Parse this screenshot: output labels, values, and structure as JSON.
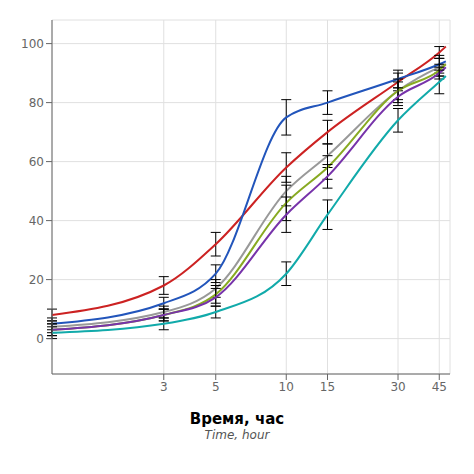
{
  "chart_data": {
    "type": "line",
    "xlabel": "Время, час",
    "annotations": [
      "Time, hour"
    ],
    "log": "x",
    "grid": true,
    "x": [
      1,
      3,
      5,
      10,
      15,
      30,
      45,
      48
    ],
    "xlim": [
      1,
      50
    ],
    "xticks": [
      3,
      5,
      10,
      15,
      30,
      45
    ],
    "ylim": [
      -12,
      108
    ],
    "yticks": [
      0,
      20,
      40,
      60,
      80,
      100
    ],
    "marker": "none",
    "series": [
      {
        "color": "#cc2222",
        "values": [
          8,
          18,
          32,
          58,
          70,
          87,
          97,
          99
        ],
        "yerr": [
          2,
          3,
          4,
          5,
          4,
          3,
          2,
          null
        ]
      },
      {
        "color": "#2255bb",
        "values": [
          5,
          12,
          22,
          75,
          80,
          88,
          93,
          94
        ],
        "yerr": [
          2,
          2,
          3,
          6,
          4,
          3,
          3,
          null
        ]
      },
      {
        "color": "#999999",
        "values": [
          4,
          9,
          17,
          50,
          62,
          84,
          92,
          93
        ],
        "yerr": [
          2,
          2,
          3,
          5,
          4,
          4,
          3,
          null
        ]
      },
      {
        "color": "#88aa22",
        "values": [
          3,
          8,
          15,
          46,
          58,
          84,
          91,
          93
        ],
        "yerr": [
          2,
          2,
          3,
          6,
          4,
          3,
          2,
          null
        ]
      },
      {
        "color": "#7733aa",
        "values": [
          3,
          8,
          14,
          42,
          55,
          82,
          90,
          92
        ],
        "yerr": [
          2,
          2,
          3,
          6,
          4,
          3,
          2,
          null
        ]
      },
      {
        "color": "#11aaaa",
        "values": [
          2,
          5,
          9,
          22,
          42,
          74,
          87,
          89
        ],
        "yerr": [
          2,
          2,
          2,
          4,
          5,
          4,
          4,
          null
        ]
      }
    ]
  }
}
